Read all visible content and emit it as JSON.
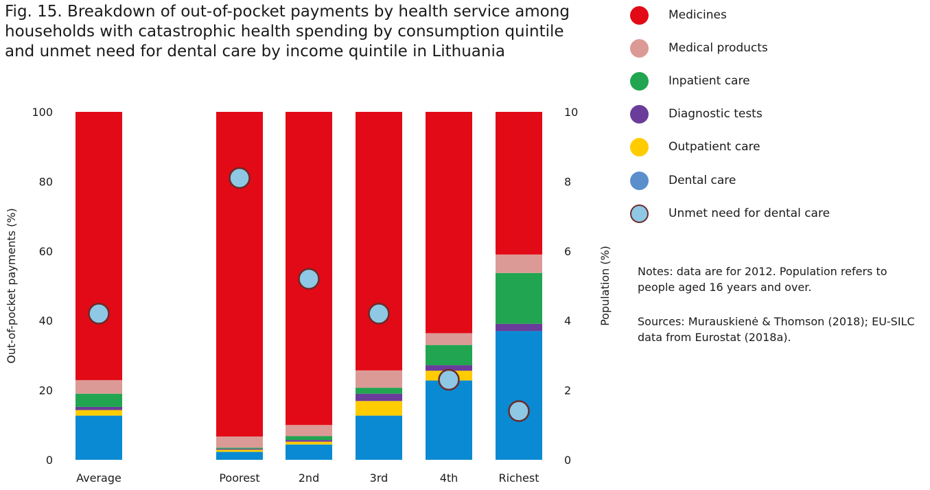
{
  "title": "Fig. 15. Breakdown of out-of-pocket payments by health service among households with catastrophic health spending by consumption quintile and unmet need for dental care by income quintile in Lithuania",
  "notes": "Notes: data are for 2012. Population refers to people aged 16 years and over.",
  "sources": "Sources: Murauskienė & Thomson (2018); EU-SILC data from Eurostat (2018a).",
  "chart_data": {
    "type": "bar",
    "stacked": true,
    "categories": [
      "Average",
      "Poorest",
      "2nd",
      "3rd",
      "4th",
      "Richest"
    ],
    "ylabel": "Out-of-pocket payments (%)",
    "ylim": [
      0,
      100
    ],
    "yticks": [
      "0",
      "20",
      "40",
      "60",
      "80",
      "100"
    ],
    "y2label": "Population (%)",
    "y2lim": [
      0,
      10
    ],
    "y2ticks": [
      "0",
      "2",
      "4",
      "6",
      "8",
      "10"
    ],
    "series": [
      {
        "name": "Dental care",
        "color": "#0a8ad2",
        "values": [
          12.7,
          2.3,
          4.4,
          12.7,
          22.8,
          37.0
        ]
      },
      {
        "name": "Outpatient care",
        "color": "#ffcc00",
        "values": [
          1.6,
          0.6,
          0.8,
          4.2,
          2.8,
          0.0
        ]
      },
      {
        "name": "Diagnostic tests",
        "color": "#6a3d9a",
        "values": [
          0.9,
          0.3,
          0.5,
          2.1,
          1.6,
          2.1
        ]
      },
      {
        "name": "Inpatient care",
        "color": "#21a550",
        "values": [
          3.8,
          0.3,
          1.1,
          1.7,
          5.8,
          14.6
        ]
      },
      {
        "name": "Medical products",
        "color": "#dc9a96",
        "values": [
          3.9,
          3.2,
          3.2,
          5.0,
          3.4,
          5.3
        ]
      },
      {
        "name": "Medicines",
        "color": "#e20a16",
        "values": [
          77.1,
          93.3,
          90.0,
          74.3,
          63.6,
          41.0
        ]
      }
    ],
    "unmet_need_dental": {
      "name": "Unmet need for dental care",
      "color": "#8ec8e4",
      "border": "#6b2a2a",
      "values": [
        4.2,
        8.1,
        5.2,
        4.2,
        2.3,
        1.4
      ]
    },
    "legend_order": [
      "Medicines",
      "Medical products",
      "Inpatient care",
      "Diagnostic tests",
      "Outpatient care",
      "Dental care",
      "Unmet need for dental care"
    ],
    "legend_colors": [
      "#e20a16",
      "#dc9a96",
      "#21a550",
      "#6a3d9a",
      "#ffcc00",
      "#5a8fcc",
      "#8ec8e4"
    ]
  }
}
